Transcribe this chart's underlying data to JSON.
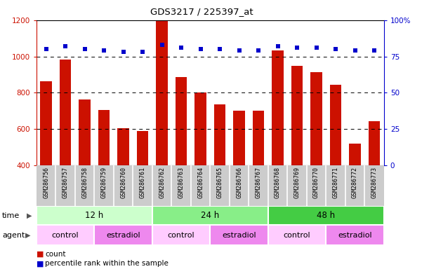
{
  "title": "GDS3217 / 225397_at",
  "samples": [
    "GSM286756",
    "GSM286757",
    "GSM286758",
    "GSM286759",
    "GSM286760",
    "GSM286761",
    "GSM286762",
    "GSM286763",
    "GSM286764",
    "GSM286765",
    "GSM286766",
    "GSM286767",
    "GSM286768",
    "GSM286769",
    "GSM286770",
    "GSM286771",
    "GSM286772",
    "GSM286773"
  ],
  "counts": [
    865,
    985,
    765,
    705,
    605,
    590,
    1195,
    885,
    800,
    735,
    700,
    700,
    1035,
    950,
    915,
    845,
    520,
    645
  ],
  "percentiles": [
    80,
    82,
    80,
    79,
    78,
    78,
    83,
    81,
    80,
    80,
    79,
    79,
    82,
    81,
    81,
    80,
    79,
    79
  ],
  "bar_color": "#cc1100",
  "dot_color": "#0000cc",
  "left_ylim": [
    400,
    1200
  ],
  "right_ylim": [
    0,
    100
  ],
  "left_yticks": [
    400,
    600,
    800,
    1000,
    1200
  ],
  "right_yticks": [
    0,
    25,
    50,
    75,
    100
  ],
  "right_yticklabels": [
    "0",
    "25",
    "50",
    "75",
    "100%"
  ],
  "time_colors": [
    "#ccffcc",
    "#88ee88",
    "#44cc44"
  ],
  "time_labels": [
    "12 h",
    "24 h",
    "48 h"
  ],
  "time_starts": [
    0,
    6,
    12
  ],
  "time_ends": [
    6,
    12,
    18
  ],
  "agent_labels": [
    "control",
    "estradiol",
    "control",
    "estradiol",
    "control",
    "estradiol"
  ],
  "agent_starts": [
    0,
    3,
    6,
    9,
    12,
    15
  ],
  "agent_ends": [
    3,
    6,
    9,
    12,
    15,
    18
  ],
  "agent_colors": [
    "#ffccff",
    "#ee88ee",
    "#ffccff",
    "#ee88ee",
    "#ffccff",
    "#ee88ee"
  ],
  "legend_count_label": "count",
  "legend_pct_label": "percentile rank within the sample",
  "tick_area_bg": "#cccccc",
  "white_sep": "#ffffff"
}
